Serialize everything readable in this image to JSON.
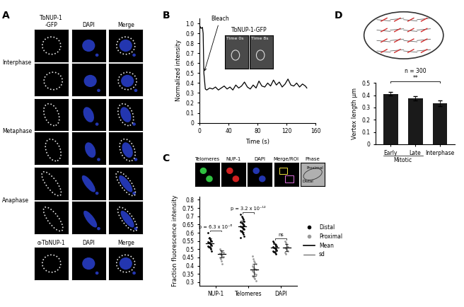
{
  "panel_labels": [
    "A",
    "B",
    "C",
    "D"
  ],
  "panel_a": {
    "columns": [
      "TbNUP-1\n-GFP",
      "DAPI",
      "Merge"
    ],
    "rows": [
      "Interphase",
      "Metaphase",
      "Anaphase"
    ],
    "antibody_columns": [
      "α-TbNUP-1",
      "DAPI",
      "Merge"
    ]
  },
  "chart_data": [
    {
      "type": "line",
      "x_label": "Time (s)",
      "y_label": "Normalized intensity",
      "annotation": "Bleach",
      "inset": {
        "title": "TbNUP-1-GFP",
        "frames": [
          "Time 0s",
          "Time 8s"
        ]
      },
      "color": "#000000",
      "x": [
        0,
        2,
        4,
        5,
        6,
        8,
        10,
        14,
        18,
        22,
        26,
        30,
        34,
        38,
        42,
        46,
        50,
        54,
        58,
        62,
        66,
        70,
        74,
        78,
        82,
        86,
        90,
        94,
        98,
        102,
        106,
        110,
        114,
        118,
        122,
        126,
        130,
        134,
        138,
        142,
        146,
        148
      ],
      "values": [
        0.98,
        0.95,
        0.96,
        0.9,
        0.5,
        0.34,
        0.33,
        0.35,
        0.34,
        0.36,
        0.33,
        0.35,
        0.37,
        0.34,
        0.36,
        0.33,
        0.38,
        0.35,
        0.37,
        0.41,
        0.36,
        0.34,
        0.38,
        0.35,
        0.42,
        0.37,
        0.36,
        0.4,
        0.37,
        0.43,
        0.38,
        0.41,
        0.36,
        0.39,
        0.44,
        0.38,
        0.37,
        0.4,
        0.36,
        0.39,
        0.37,
        0.35
      ],
      "xlim": [
        0,
        160
      ],
      "xticks": [
        0,
        40,
        80,
        120,
        160
      ],
      "ylim": [
        0,
        1.05
      ],
      "yticks": [
        0,
        0.1,
        0.2,
        0.3,
        0.4,
        0.5,
        0.6,
        0.7,
        0.8,
        0.9,
        1.0
      ]
    },
    {
      "type": "scatter",
      "images": {
        "channels": [
          "Telomeres",
          "NUP-1",
          "DAPI",
          "Merge/ROI",
          "Phase"
        ],
        "regions": [
          "Distal",
          "Proximal"
        ]
      },
      "y_label": "Fraction fluorescence intensity",
      "categories": [
        "NUP-1",
        "Telomeres",
        "DAPI"
      ],
      "series": [
        {
          "name": "Distal",
          "color": "#000000",
          "marker": "circle",
          "values": [
            [
              0.6,
              0.57,
              0.56,
              0.555,
              0.55,
              0.545,
              0.54,
              0.535,
              0.53,
              0.525,
              0.52,
              0.515,
              0.51,
              0.5,
              0.49
            ],
            [
              0.71,
              0.7,
              0.69,
              0.68,
              0.67,
              0.665,
              0.66,
              0.655,
              0.65,
              0.645,
              0.64,
              0.635,
              0.63,
              0.625,
              0.62,
              0.615,
              0.61,
              0.6,
              0.59,
              0.58,
              0.57
            ],
            [
              0.55,
              0.54,
              0.53,
              0.525,
              0.52,
              0.515,
              0.51,
              0.505,
              0.5,
              0.495,
              0.49,
              0.485,
              0.48,
              0.47
            ]
          ],
          "mean": [
            0.537,
            0.64,
            0.51
          ],
          "sd": [
            0.028,
            0.035,
            0.021
          ]
        },
        {
          "name": "Proximal",
          "color": "#9a9a9a",
          "marker": "circle",
          "values": [
            [
              0.5,
              0.495,
              0.49,
              0.485,
              0.48,
              0.475,
              0.47,
              0.465,
              0.46,
              0.455,
              0.45,
              0.44,
              0.43,
              0.41
            ],
            [
              0.46,
              0.44,
              0.43,
              0.42,
              0.41,
              0.4,
              0.39,
              0.385,
              0.38,
              0.375,
              0.37,
              0.365,
              0.36,
              0.35,
              0.345,
              0.34,
              0.335,
              0.33,
              0.32,
              0.31
            ],
            [
              0.55,
              0.54,
              0.53,
              0.52,
              0.515,
              0.51,
              0.505,
              0.5,
              0.495,
              0.49,
              0.48,
              0.47
            ]
          ],
          "mean": [
            0.472,
            0.375,
            0.51
          ],
          "sd": [
            0.023,
            0.038,
            0.023
          ]
        }
      ],
      "summary_series": [
        {
          "name": "Mean",
          "line_style": "solid"
        },
        {
          "name": "sd",
          "line_style": "solid"
        }
      ],
      "annotations": [
        "p = 6.3 x 10⁻⁶",
        "p = 3.2 x 10⁻¹²",
        "ns"
      ],
      "legend": "right",
      "ylim": [
        0.28,
        0.82
      ],
      "yticks": [
        0.3,
        0.35,
        0.4,
        0.45,
        0.5,
        0.55,
        0.6,
        0.65,
        0.7,
        0.75,
        0.8
      ]
    },
    {
      "type": "bar",
      "categories": [
        "Early",
        "Late",
        "Interphase"
      ],
      "group": {
        "label": "Mitotic",
        "categories": [
          "Early",
          "Late"
        ]
      },
      "values": [
        0.41,
        0.375,
        0.335
      ],
      "errors": [
        0.015,
        0.017,
        0.022
      ],
      "color": "#1a1a1a",
      "y_label": "Vertex length μm",
      "note": "n = 300",
      "significance": "**",
      "ylim": [
        0,
        0.5
      ],
      "yticks": [
        0,
        0.1,
        0.2,
        0.3,
        0.4,
        0.5
      ]
    }
  ]
}
